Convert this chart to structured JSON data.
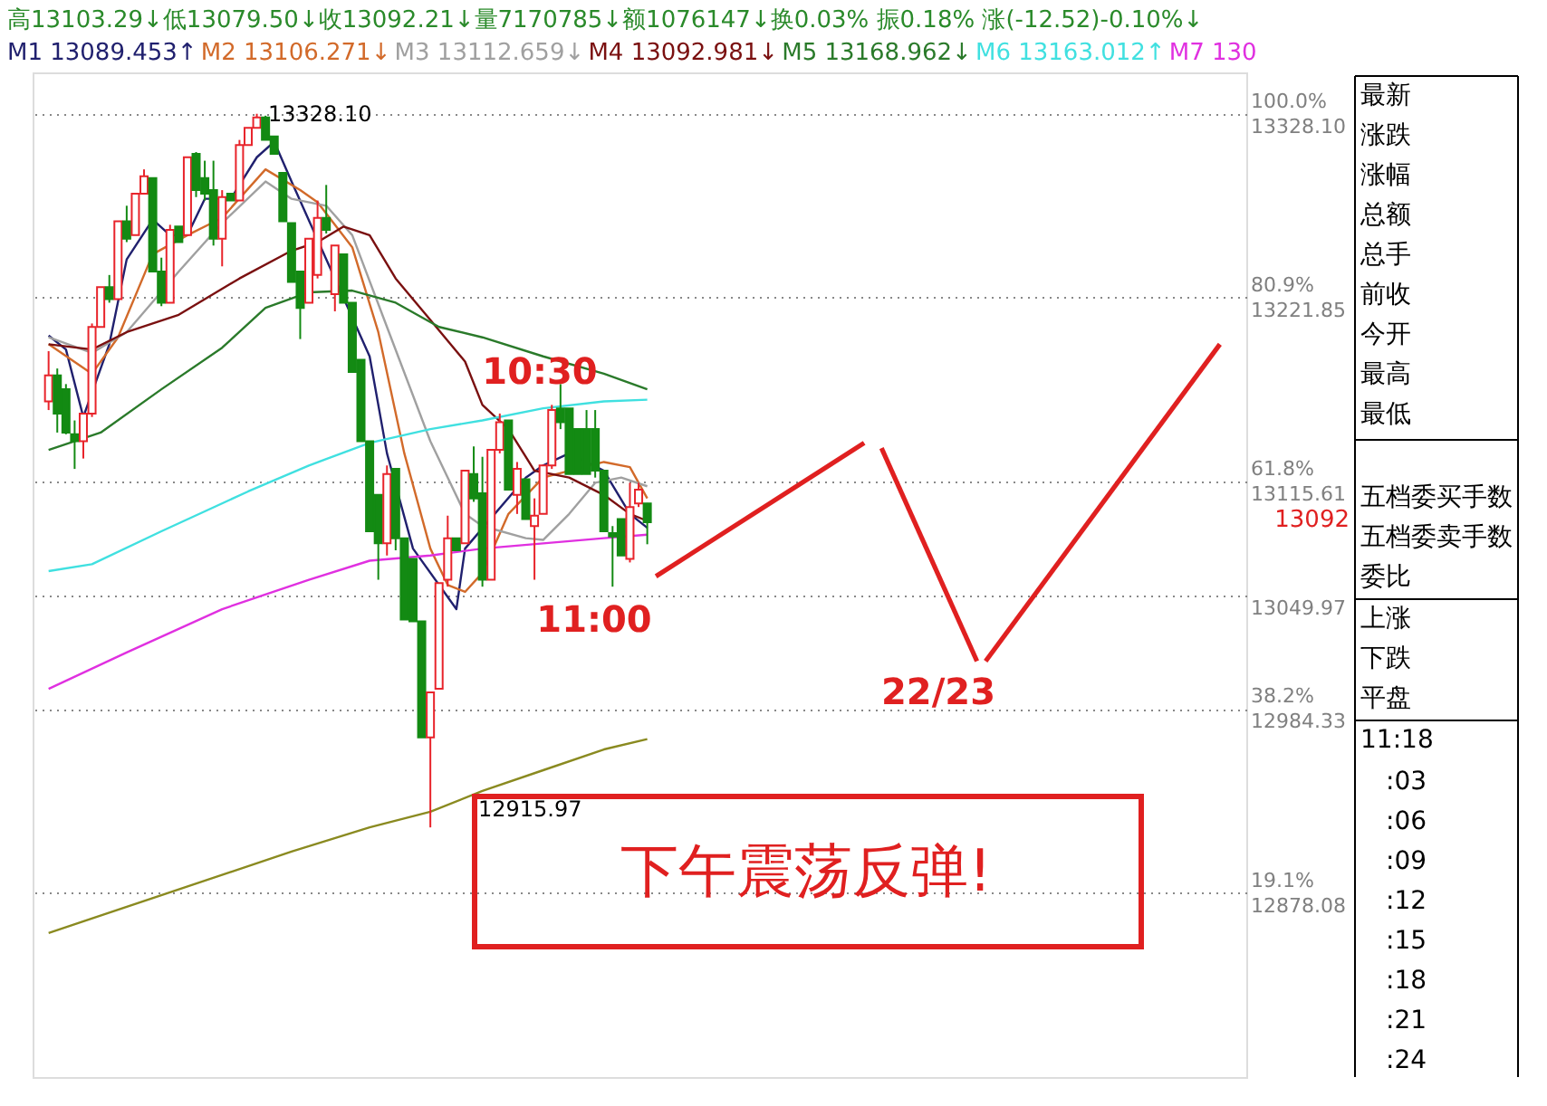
{
  "chart_data": {
    "type": "candlestick",
    "ylim": [
      12771.8,
      13352
    ],
    "y2lim": [
      0,
      104.3
    ],
    "y2ticks": [
      {
        "value": 100,
        "label": "100.0%"
      },
      {
        "value": 80.9,
        "label": "80.9%"
      },
      {
        "value": 61.8,
        "label": "61.8%"
      },
      {
        "value": 38.2,
        "label": "38.2%"
      },
      {
        "value": 19.1,
        "label": "19.1%"
      }
    ],
    "tick_labels": "y",
    "grid": "y",
    "marker": "none",
    "line_style": "solid",
    "categories": [
      null,
      null,
      null,
      null,
      null,
      null,
      null,
      null,
      null,
      null,
      null,
      null,
      null,
      null,
      null,
      null,
      null,
      null,
      null,
      null,
      null,
      null,
      null,
      null,
      null,
      null,
      null,
      null,
      null,
      null,
      null,
      null,
      null,
      null,
      null,
      null,
      null,
      null,
      null,
      null,
      null,
      null,
      null,
      null,
      null,
      null,
      null,
      null,
      null,
      null,
      null,
      null,
      null,
      null,
      null,
      null,
      null,
      null,
      null,
      null,
      null,
      null,
      null,
      null,
      null,
      null,
      null,
      null,
      null,
      null,
      null,
      null,
      null,
      null,
      null,
      null,
      null,
      null,
      null,
      null,
      null,
      null,
      null,
      null,
      null,
      null,
      null,
      null,
      null,
      null,
      null,
      null,
      null,
      null,
      null,
      null,
      null,
      null,
      null,
      null,
      null,
      null,
      null,
      null,
      null,
      null,
      null,
      null,
      null,
      null,
      null,
      null,
      null,
      null,
      null,
      null,
      null,
      null,
      null,
      null,
      null,
      null,
      null,
      null,
      null,
      null,
      null,
      null,
      null,
      null,
      null,
      null,
      null,
      null,
      null,
      null,
      null,
      null
    ],
    "yticks": [
      {
        "value": 13328.1,
        "label": "13328.10"
      },
      {
        "value": 13221.85,
        "label": "13221.85"
      },
      {
        "value": 13115.61,
        "label": "13115.61"
      },
      {
        "value": 13049.97,
        "label": "13049.97"
      },
      {
        "value": 12984.33,
        "label": "12984.33"
      },
      {
        "value": 12878.08,
        "label": "12878.08"
      }
    ],
    "ohlc": [
      [
        13162,
        13191,
        13157,
        13177
      ],
      [
        13177,
        13181,
        13144,
        13155
      ],
      [
        13169,
        13172,
        13143,
        13144
      ],
      [
        13143,
        13151,
        13123,
        13139
      ],
      [
        13139,
        13155,
        13129,
        13155
      ],
      [
        13155,
        13207,
        13153,
        13205
      ],
      [
        13205,
        13228,
        13205,
        13228
      ],
      [
        13228,
        13235,
        13219,
        13221
      ],
      [
        13221,
        13266,
        13221,
        13266
      ],
      [
        13266,
        13275,
        13254,
        13256
      ],
      [
        13258,
        13282,
        13258,
        13282
      ],
      [
        13282,
        13296,
        13282,
        13292
      ],
      [
        13291,
        13291,
        13237,
        13237
      ],
      [
        13237,
        13245,
        13217,
        13219
      ],
      [
        13219,
        13264,
        13219,
        13261
      ],
      [
        13263,
        13263,
        13254,
        13254
      ],
      [
        13258,
        13303,
        13258,
        13303
      ],
      [
        13305,
        13306,
        13280,
        13284
      ],
      [
        13291,
        13301,
        13278,
        13282
      ],
      [
        13284,
        13301,
        13252,
        13256
      ],
      [
        13256,
        13284,
        13240,
        13280
      ],
      [
        13282,
        13282,
        13278,
        13278
      ],
      [
        13278,
        13313,
        13278,
        13310
      ],
      [
        13310,
        13320,
        13310,
        13320
      ],
      [
        13320,
        13328.1,
        13320,
        13326
      ],
      [
        13326,
        13327,
        13313,
        13313
      ],
      [
        13315,
        13315,
        13305,
        13305
      ],
      [
        13294,
        13294,
        13266,
        13266
      ],
      [
        13265,
        13265,
        13231,
        13231
      ],
      [
        13237,
        13237,
        13198,
        13216
      ],
      [
        13219,
        13256,
        13219,
        13256
      ],
      [
        13235,
        13278,
        13233,
        13268
      ],
      [
        13268,
        13287,
        13259,
        13261
      ],
      [
        13224,
        13252,
        13214,
        13252
      ],
      [
        13247,
        13247,
        13219,
        13219
      ],
      [
        13219,
        13219,
        13179,
        13179
      ],
      [
        13186,
        13186,
        13139,
        13139
      ],
      [
        13139,
        13139,
        13087,
        13087
      ],
      [
        13108,
        13108,
        13059,
        13080
      ],
      [
        13080,
        13125,
        13073,
        13120
      ],
      [
        13123,
        13123,
        13076,
        13083
      ],
      [
        13083,
        13083,
        13036,
        13036
      ],
      [
        13071,
        13071,
        13035,
        13035
      ],
      [
        13035,
        13035,
        12968,
        12968
      ],
      [
        12968,
        12994,
        12915.97,
        12994
      ],
      [
        12996,
        13057,
        12996,
        13057
      ],
      [
        13059,
        13096,
        13055,
        13083
      ],
      [
        13083,
        13083,
        13076,
        13076
      ],
      [
        13080,
        13122,
        13080,
        13122
      ],
      [
        13120,
        13136,
        13104,
        13106
      ],
      [
        13109,
        13130,
        13055,
        13059
      ],
      [
        13059,
        13134,
        13059,
        13134
      ],
      [
        13134,
        13155,
        13132,
        13150
      ],
      [
        13151,
        13151,
        13111,
        13111
      ],
      [
        13108,
        13127,
        13097,
        13123
      ],
      [
        13117,
        13117,
        13094,
        13094
      ],
      [
        13090,
        13106,
        13059,
        13096
      ],
      [
        13097,
        13125,
        13097,
        13125
      ],
      [
        13125,
        13160,
        13123,
        13157
      ],
      [
        13158,
        13172,
        13146,
        13150
      ],
      [
        13158,
        13158,
        13120,
        13120
      ],
      [
        13146,
        13146,
        13120,
        13120
      ],
      [
        13146,
        13157,
        13120,
        13120
      ],
      [
        13146,
        13157,
        13118,
        13122
      ],
      [
        13122,
        13122,
        13087,
        13087
      ],
      [
        13086,
        13090,
        13055,
        13084
      ],
      [
        13094,
        13094,
        13073,
        13073
      ],
      [
        13071,
        13115,
        13069,
        13101
      ],
      [
        13103,
        13115,
        13101,
        13111
      ],
      [
        13103,
        13103.29,
        13079.5,
        13092.21
      ],
      null,
      null,
      null,
      null,
      null,
      null,
      null,
      null,
      null,
      null,
      null,
      null,
      null,
      null,
      null,
      null,
      null,
      null,
      null,
      null,
      null,
      null,
      null,
      null,
      null,
      null,
      null,
      null,
      null,
      null,
      null,
      null,
      null,
      null,
      null,
      null,
      null,
      null,
      null,
      null,
      null,
      null,
      null,
      null,
      null,
      null,
      null,
      null,
      null,
      null,
      null,
      null,
      null,
      null,
      null,
      null,
      null,
      null,
      null,
      null,
      null,
      null,
      null,
      null,
      null,
      null,
      null,
      null
    ],
    "colors": [
      "#e8242b",
      "#138a13",
      "#138a13",
      "#138a13",
      "#e8242b",
      "#e8242b",
      "#e8242b",
      "#138a13",
      "#e8242b",
      "#138a13",
      "#e8242b",
      "#e8242b",
      "#138a13",
      "#138a13",
      "#e8242b",
      "#138a13",
      "#e8242b",
      "#138a13",
      "#138a13",
      "#138a13",
      "#e8242b",
      "#138a13",
      "#e8242b",
      "#e8242b",
      "#e8242b",
      "#138a13",
      "#138a13",
      "#138a13",
      "#138a13",
      "#138a13",
      "#e8242b",
      "#e8242b",
      "#138a13",
      "#e8242b",
      "#138a13",
      "#138a13",
      "#138a13",
      "#138a13",
      "#138a13",
      "#e8242b",
      "#138a13",
      "#138a13",
      "#138a13",
      "#138a13",
      "#e8242b",
      "#e8242b",
      "#e8242b",
      "#138a13",
      "#e8242b",
      "#138a13",
      "#138a13",
      "#e8242b",
      "#e8242b",
      "#138a13",
      "#e8242b",
      "#138a13",
      "#e8242b",
      "#e8242b",
      "#e8242b",
      "#138a13",
      "#138a13",
      "#138a13",
      "#138a13",
      "#138a13",
      "#138a13",
      "#138a13",
      "#138a13",
      "#e8242b",
      "#e8242b",
      "#138a13",
      null,
      null,
      null,
      null,
      null,
      null,
      null,
      null,
      null,
      null,
      null,
      null,
      null,
      null,
      null,
      null,
      null,
      null,
      null,
      null,
      null,
      null,
      null,
      null,
      null,
      null,
      null,
      null,
      null,
      null,
      null,
      null,
      null,
      null,
      null,
      null,
      null,
      null,
      null,
      null,
      null,
      null,
      null,
      null,
      null,
      null,
      null,
      null,
      null,
      null,
      null,
      null,
      null,
      null,
      null,
      null,
      null,
      null,
      null,
      null,
      null,
      null,
      null,
      null,
      null,
      null,
      null,
      null
    ],
    "series": [
      {
        "type": "line",
        "name": "M1 13089.453↑",
        "color": "#20206e",
        "values": [
          13200,
          null,
          13192,
          null,
          13153,
          null,
          null,
          13195,
          null,
          13244,
          null,
          null,
          13267,
          null,
          13258,
          null,
          13258,
          null,
          13279,
          null,
          null,
          13279,
          null,
          null,
          13303,
          null,
          13312,
          null,
          13289,
          null,
          null,
          null,
          null,
          null,
          null,
          null,
          null,
          13188,
          null,
          13132,
          null,
          null,
          13077,
          null,
          null,
          null,
          null,
          13042,
          13077,
          null,
          null,
          null,
          null,
          null,
          null,
          13118,
          null,
          13125,
          null,
          null,
          13132,
          null,
          null,
          null,
          13122,
          null,
          null,
          13097,
          null,
          13089,
          null,
          null,
          null,
          null,
          null,
          null,
          null,
          null,
          null,
          null,
          null,
          null,
          null,
          null,
          null,
          null,
          null,
          null,
          null,
          null,
          null,
          null,
          null,
          null,
          null,
          null,
          null,
          null,
          null,
          null,
          null,
          null,
          null,
          null,
          null,
          null,
          null,
          null,
          null,
          null,
          null,
          null,
          null,
          null,
          null,
          null,
          null,
          null,
          null,
          null,
          null,
          null,
          null,
          null,
          null,
          null,
          null,
          null,
          null,
          null,
          null,
          null,
          null,
          null,
          null,
          null,
          null,
          null
        ]
      },
      {
        "type": "line",
        "name": "M2 13106.271↓",
        "color": "#d26a2a",
        "values": [
          13195,
          null,
          null,
          null,
          null,
          13178,
          null,
          null,
          13199,
          null,
          null,
          null,
          13247,
          null,
          null,
          null,
          13258,
          null,
          null,
          null,
          13268,
          null,
          null,
          null,
          null,
          13296,
          null,
          null,
          null,
          13284,
          null,
          13277,
          null,
          null,
          null,
          13251,
          null,
          null,
          13202,
          null,
          null,
          13132,
          null,
          null,
          13077,
          null,
          13056,
          null,
          13052,
          null,
          13063,
          null,
          null,
          13097,
          null,
          null,
          null,
          13118,
          null,
          null,
          null,
          null,
          null,
          null,
          13127,
          null,
          null,
          13124,
          null,
          13106,
          null,
          null,
          null,
          null,
          null,
          null,
          null,
          null,
          null,
          null,
          null,
          null,
          null,
          null,
          null,
          null,
          null,
          null,
          null,
          null,
          null,
          null,
          null,
          null,
          null,
          null,
          null,
          null,
          null,
          null,
          null,
          null,
          null,
          null,
          null,
          null,
          null,
          null,
          null,
          null,
          null,
          null,
          null,
          null,
          null,
          null,
          null,
          null,
          null,
          null,
          null,
          null,
          null,
          null,
          null,
          null,
          null,
          null,
          null,
          null,
          null,
          null,
          null,
          null,
          null,
          null,
          null,
          null
        ]
      },
      {
        "type": "line",
        "name": "M3 13112.659↓",
        "color": "#a0a0a0",
        "values": [
          13199,
          null,
          null,
          null,
          null,
          13190,
          null,
          null,
          null,
          13202,
          null,
          null,
          null,
          null,
          null,
          13237,
          null,
          null,
          null,
          null,
          13265,
          null,
          null,
          null,
          null,
          13289,
          null,
          null,
          13279,
          null,
          null,
          null,
          13275,
          null,
          null,
          13258,
          null,
          null,
          null,
          13205,
          null,
          null,
          null,
          null,
          13139,
          null,
          null,
          null,
          13097,
          null,
          13090,
          null,
          null,
          null,
          null,
          13083,
          null,
          13082,
          null,
          null,
          13097,
          null,
          null,
          13115,
          null,
          null,
          13118,
          null,
          null,
          13113,
          null,
          null,
          null,
          null,
          null,
          null,
          null,
          null,
          null,
          null,
          null,
          null,
          null,
          null,
          null,
          null,
          null,
          null,
          null,
          null,
          null,
          null,
          null,
          null,
          null,
          null,
          null,
          null,
          null,
          null,
          null,
          null,
          null,
          null,
          null,
          null,
          null,
          null,
          null,
          null,
          null,
          null,
          null,
          null,
          null,
          null,
          null,
          null,
          null,
          null,
          null,
          null,
          null,
          null,
          null,
          null,
          null,
          null,
          null,
          null,
          null,
          null,
          null,
          null,
          null,
          null,
          null,
          null
        ]
      },
      {
        "type": "line",
        "name": "M4 13092.981↓",
        "color": "#7a1010",
        "values": [
          13195,
          null,
          null,
          null,
          null,
          13192,
          null,
          null,
          null,
          13202,
          null,
          null,
          null,
          null,
          null,
          13212,
          null,
          null,
          null,
          null,
          null,
          null,
          13233,
          null,
          null,
          null,
          null,
          null,
          13249,
          null,
          null,
          13254,
          null,
          null,
          13263,
          null,
          null,
          13258,
          null,
          null,
          13233,
          null,
          null,
          null,
          13209,
          null,
          null,
          null,
          13185,
          null,
          13160,
          null,
          null,
          13146,
          null,
          null,
          13122,
          null,
          null,
          null,
          13118,
          null,
          null,
          null,
          13108,
          null,
          null,
          13097,
          null,
          13093,
          null,
          null,
          null,
          null,
          null,
          null,
          null,
          null,
          null,
          null,
          null,
          null,
          null,
          null,
          null,
          null,
          null,
          null,
          null,
          null,
          null,
          null,
          null,
          null,
          null,
          null,
          null,
          null,
          null,
          null,
          null,
          null,
          null,
          null,
          null,
          null,
          null,
          null,
          null,
          null,
          null,
          null,
          null,
          null,
          null,
          null,
          null,
          null,
          null,
          null,
          null,
          null,
          null,
          null,
          null,
          null,
          null,
          null,
          null,
          null,
          null,
          null,
          null,
          null,
          null,
          null,
          null,
          null
        ]
      },
      {
        "type": "line",
        "name": "M5 13168.962↓",
        "color": "#2a7a2a",
        "values": [
          13134,
          null,
          null,
          null,
          null,
          null,
          13144,
          null,
          null,
          null,
          null,
          null,
          null,
          13169,
          null,
          null,
          null,
          null,
          null,
          null,
          13193,
          null,
          null,
          null,
          null,
          13216,
          null,
          null,
          null,
          null,
          13225,
          null,
          null,
          null,
          null,
          13226,
          null,
          null,
          null,
          null,
          13219,
          null,
          null,
          null,
          null,
          13205,
          null,
          null,
          null,
          null,
          13199,
          null,
          null,
          null,
          null,
          null,
          null,
          13188,
          null,
          null,
          null,
          null,
          null,
          null,
          13178,
          null,
          null,
          null,
          null,
          13169,
          null,
          null,
          null,
          null,
          null,
          null,
          null,
          null,
          null,
          null,
          null,
          null,
          null,
          null,
          null,
          null,
          null,
          null,
          null,
          null,
          null,
          null,
          null,
          null,
          null,
          null,
          null,
          null,
          null,
          null,
          null,
          null,
          null,
          null,
          null,
          null,
          null,
          null,
          null,
          null,
          null,
          null,
          null,
          null,
          null,
          null,
          null,
          null,
          null,
          null,
          null,
          null,
          null,
          null,
          null,
          null,
          null,
          null,
          null,
          null,
          null,
          null,
          null,
          null,
          null,
          null,
          null,
          null
        ]
      },
      {
        "type": "line",
        "name": "M6 13163.012↑",
        "color": "#40e0e0",
        "values": [
          13064,
          null,
          null,
          null,
          null,
          13068,
          null,
          null,
          null,
          null,
          null,
          null,
          null,
          13087,
          null,
          null,
          null,
          null,
          null,
          null,
          null,
          null,
          null,
          13110,
          null,
          null,
          null,
          null,
          null,
          null,
          13125,
          null,
          null,
          null,
          null,
          null,
          null,
          13138,
          null,
          null,
          null,
          null,
          null,
          null,
          13146,
          null,
          null,
          null,
          null,
          null,
          13151,
          null,
          null,
          null,
          null,
          null,
          null,
          13158,
          null,
          null,
          null,
          null,
          null,
          null,
          13162,
          null,
          null,
          null,
          null,
          13163,
          null,
          null,
          null,
          null,
          null,
          null,
          null,
          null,
          null,
          null,
          null,
          null,
          null,
          null,
          null,
          null,
          null,
          null,
          null,
          null,
          null,
          null,
          null,
          null,
          null,
          null,
          null,
          null,
          null,
          null,
          null,
          null,
          null,
          null,
          null,
          null,
          null,
          null,
          null,
          null,
          null,
          null,
          null,
          null,
          null,
          null,
          null,
          null,
          null,
          null,
          null,
          null,
          null,
          null,
          null,
          null,
          null,
          null,
          null,
          null,
          null,
          null,
          null,
          null,
          null,
          null,
          null,
          null
        ]
      },
      {
        "type": "line",
        "name": "M7 130",
        "color": "#e030e0",
        "values": [
          12996,
          null,
          null,
          null,
          null,
          null,
          null,
          null,
          null,
          13017,
          null,
          null,
          null,
          null,
          null,
          null,
          null,
          null,
          null,
          null,
          13042,
          null,
          null,
          null,
          null,
          null,
          null,
          null,
          null,
          null,
          13059,
          null,
          null,
          null,
          null,
          null,
          null,
          13070,
          null,
          null,
          null,
          null,
          null,
          null,
          13073,
          null,
          null,
          null,
          null,
          null,
          13077,
          null,
          null,
          null,
          null,
          null,
          null,
          13080,
          null,
          null,
          null,
          null,
          null,
          null,
          13083,
          null,
          null,
          null,
          null,
          13085,
          null,
          null,
          null,
          null,
          null,
          null,
          null,
          null,
          null,
          null,
          null,
          null,
          null,
          null,
          null,
          null,
          null,
          null,
          null,
          null,
          null,
          null,
          null,
          null,
          null,
          null,
          null,
          null,
          null,
          null,
          null,
          null,
          null,
          null,
          null,
          null,
          null,
          null,
          null,
          null,
          null,
          null,
          null,
          null,
          null,
          null,
          null,
          null,
          null,
          null,
          null,
          null,
          null,
          null,
          null,
          null,
          null,
          null,
          null,
          null,
          null,
          null,
          null,
          null,
          null,
          null,
          null,
          null
        ]
      },
      {
        "type": "line",
        "color": "#8a8a20",
        "values": [
          12855,
          null,
          null,
          null,
          null,
          null,
          null,
          null,
          null,
          null,
          null,
          null,
          null,
          null,
          null,
          null,
          null,
          null,
          null,
          null,
          null,
          null,
          null,
          null,
          null,
          null,
          null,
          null,
          12902,
          null,
          null,
          null,
          null,
          null,
          null,
          null,
          null,
          12916,
          null,
          null,
          null,
          null,
          null,
          null,
          12925,
          null,
          null,
          null,
          null,
          null,
          12937,
          null,
          null,
          null,
          null,
          null,
          null,
          12949,
          null,
          null,
          null,
          null,
          null,
          null,
          12961,
          null,
          null,
          null,
          null,
          12967,
          null,
          null,
          null,
          null,
          null,
          null,
          null,
          null,
          null,
          null,
          null,
          null,
          null,
          null,
          null,
          null,
          null,
          null,
          null,
          null,
          null,
          null,
          null,
          null,
          null,
          null,
          null,
          null,
          null,
          null,
          null,
          null,
          null,
          null,
          null,
          null,
          null,
          null,
          null,
          null,
          null,
          null,
          null,
          null,
          null,
          null,
          null,
          null,
          null,
          null,
          null,
          null,
          null,
          null,
          null,
          null,
          null,
          null,
          null,
          null,
          null,
          null,
          null,
          null,
          null,
          null,
          null,
          null
        ]
      },
      {
        "type": "line",
        "color": "#e02020",
        "values": [
          null,
          null,
          null,
          null,
          null,
          null,
          null,
          null,
          null,
          null,
          null,
          null,
          null,
          null,
          null,
          null,
          null,
          null,
          null,
          null,
          null,
          null,
          null,
          null,
          null,
          null,
          null,
          null,
          null,
          null,
          null,
          null,
          null,
          null,
          null,
          null,
          null,
          null,
          null,
          null,
          null,
          null,
          null,
          null,
          null,
          null,
          null,
          null,
          null,
          null,
          null,
          null,
          null,
          null,
          null,
          null,
          null,
          null,
          null,
          null,
          null,
          null,
          null,
          null,
          null,
          null,
          null,
          null,
          null,
          null,
          13061,
          null,
          null,
          null,
          null,
          null,
          null,
          null,
          null,
          null,
          null,
          null,
          null,
          null,
          null,
          null,
          null,
          null,
          null,
          null,
          null,
          null,
          null,
          null,
          13138,
          null,
          null,
          null,
          null,
          null,
          null,
          null,
          null,
          null,
          null,
          null,
          null,
          null,
          null,
          null,
          null,
          null,
          null,
          null,
          null,
          null,
          null,
          null,
          null,
          null,
          null,
          null,
          null,
          null,
          null,
          null,
          null,
          null,
          null,
          null,
          null,
          null,
          null,
          null,
          null,
          null,
          null,
          null
        ]
      },
      {
        "type": "line",
        "color": "#e02020",
        "values": [
          null,
          null,
          null,
          null,
          null,
          null,
          null,
          null,
          null,
          null,
          null,
          null,
          null,
          null,
          null,
          null,
          null,
          null,
          null,
          null,
          null,
          null,
          null,
          null,
          null,
          null,
          null,
          null,
          null,
          null,
          null,
          null,
          null,
          null,
          null,
          null,
          null,
          null,
          null,
          null,
          null,
          null,
          null,
          null,
          null,
          null,
          null,
          null,
          null,
          null,
          null,
          null,
          null,
          null,
          null,
          null,
          null,
          null,
          null,
          null,
          null,
          null,
          null,
          null,
          null,
          null,
          null,
          null,
          null,
          null,
          null,
          null,
          null,
          null,
          null,
          null,
          null,
          null,
          null,
          null,
          null,
          null,
          null,
          null,
          null,
          null,
          null,
          null,
          null,
          null,
          null,
          null,
          null,
          null,
          null,
          null,
          13135,
          null,
          null,
          null,
          null,
          null,
          null,
          null,
          null,
          null,
          null,
          13012,
          null,
          null,
          null,
          null,
          null,
          null,
          null,
          null,
          null,
          null,
          null,
          null,
          null,
          null,
          null,
          null,
          null,
          null,
          null,
          null,
          null,
          null,
          null,
          null,
          null,
          null,
          null,
          null,
          null,
          null
        ]
      },
      {
        "type": "line",
        "color": "#e02020",
        "values": [
          null,
          null,
          null,
          null,
          null,
          null,
          null,
          null,
          null,
          null,
          null,
          null,
          null,
          null,
          null,
          null,
          null,
          null,
          null,
          null,
          null,
          null,
          null,
          null,
          null,
          null,
          null,
          null,
          null,
          null,
          null,
          null,
          null,
          null,
          null,
          null,
          null,
          null,
          null,
          null,
          null,
          null,
          null,
          null,
          null,
          null,
          null,
          null,
          null,
          null,
          null,
          null,
          null,
          null,
          null,
          null,
          null,
          null,
          null,
          null,
          null,
          null,
          null,
          null,
          null,
          null,
          null,
          null,
          null,
          null,
          null,
          null,
          null,
          null,
          null,
          null,
          null,
          null,
          null,
          null,
          null,
          null,
          null,
          null,
          null,
          null,
          null,
          null,
          null,
          null,
          null,
          null,
          null,
          null,
          null,
          null,
          null,
          null,
          null,
          null,
          null,
          null,
          null,
          null,
          null,
          null,
          null,
          null,
          13012,
          null,
          null,
          null,
          null,
          null,
          null,
          null,
          null,
          null,
          null,
          null,
          null,
          null,
          null,
          null,
          null,
          null,
          null,
          null,
          null,
          null,
          null,
          null,
          null,
          null,
          null,
          13195,
          null,
          null
        ]
      }
    ],
    "annotations": [
      "高13103.29↓低13079.50↓收13092.21↓量7170785↓额1076147↓换0.03% 振0.18% 涨(-12.52)-0.10%↓",
      "最新",
      "涨跌",
      "涨幅",
      "总额",
      "总手",
      "前收",
      "今开",
      "最高",
      "最低",
      "五档委买手数",
      "五档委卖手数",
      "委比",
      "上涨",
      "下跌",
      "平盘",
      "11:18",
      ":03",
      ":06",
      ":09",
      ":12",
      ":15",
      ":18",
      ":21",
      ":24",
      "10:30",
      "11:00",
      "22/23",
      "下午震荡反弹!",
      "12915.97",
      "13092",
      "13328.10"
    ]
  }
}
